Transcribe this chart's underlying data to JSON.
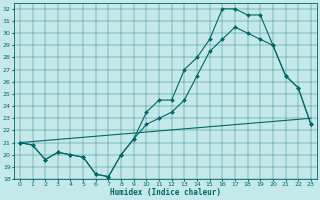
{
  "xlabel": "Humidex (Indice chaleur)",
  "ylabel": "",
  "bg_color": "#c5e8e8",
  "line_color": "#006868",
  "xlim": [
    -0.5,
    23.5
  ],
  "ylim": [
    18,
    32.5
  ],
  "xticks": [
    0,
    1,
    2,
    3,
    4,
    5,
    6,
    7,
    8,
    9,
    10,
    11,
    12,
    13,
    14,
    15,
    16,
    17,
    18,
    19,
    20,
    21,
    22,
    23
  ],
  "yticks": [
    18,
    19,
    20,
    21,
    22,
    23,
    24,
    25,
    26,
    27,
    28,
    29,
    30,
    31,
    32
  ],
  "line1_x": [
    0,
    1,
    2,
    3,
    4,
    5,
    6,
    7,
    8,
    9,
    10,
    11,
    12,
    13,
    14,
    15,
    16,
    17,
    18,
    19,
    20,
    21,
    22,
    23
  ],
  "line1_y": [
    21.0,
    20.8,
    19.6,
    20.2,
    20.0,
    19.8,
    18.4,
    18.2,
    20.0,
    21.3,
    23.5,
    24.5,
    24.5,
    27.0,
    28.0,
    29.5,
    32.0,
    32.0,
    31.5,
    31.5,
    29.0,
    26.5,
    25.5,
    22.5
  ],
  "line2_x": [
    0,
    1,
    2,
    3,
    4,
    5,
    6,
    7,
    8,
    9,
    10,
    11,
    12,
    13,
    14,
    15,
    16,
    17,
    18,
    19,
    20,
    21,
    22,
    23
  ],
  "line2_y": [
    21.0,
    20.8,
    19.6,
    20.2,
    20.0,
    19.8,
    18.4,
    18.2,
    20.0,
    21.3,
    22.5,
    23.0,
    23.5,
    24.5,
    26.5,
    28.5,
    29.5,
    30.5,
    30.0,
    29.5,
    29.0,
    26.5,
    25.5,
    22.5
  ],
  "line3_x": [
    0,
    23
  ],
  "line3_y": [
    21.0,
    23.0
  ]
}
